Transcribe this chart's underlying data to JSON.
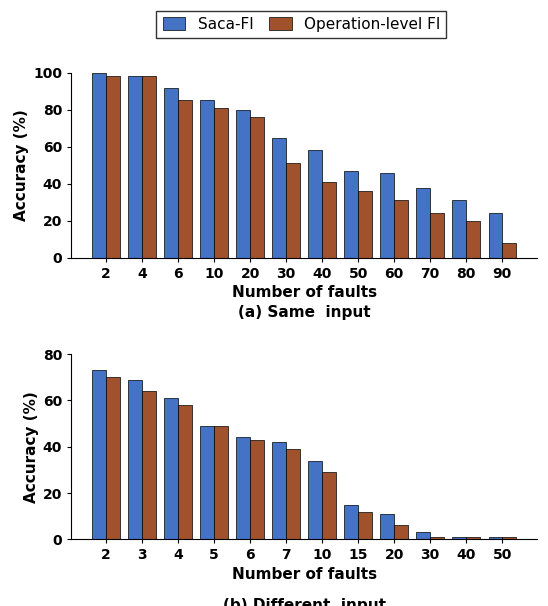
{
  "top_chart": {
    "caption": "(a) Same  input",
    "xlabel": "Number of faults",
    "ylabel": "Accuracy (%)",
    "ylim": [
      0,
      100
    ],
    "yticks": [
      0,
      20,
      40,
      60,
      80,
      100
    ],
    "categories": [
      "2",
      "4",
      "6",
      "10",
      "20",
      "30",
      "40",
      "50",
      "60",
      "70",
      "80",
      "90"
    ],
    "saca_fi": [
      100,
      98,
      92,
      85,
      80,
      65,
      58,
      47,
      46,
      38,
      31,
      24
    ],
    "op_fi": [
      98,
      98,
      85,
      81,
      76,
      51,
      41,
      36,
      31,
      24,
      20,
      8
    ]
  },
  "bottom_chart": {
    "caption": "(b) Different  input",
    "xlabel": "Number of faults",
    "ylabel": "Accuracy (%)",
    "ylim": [
      0,
      80
    ],
    "yticks": [
      0,
      20,
      40,
      60,
      80
    ],
    "categories": [
      "2",
      "3",
      "4",
      "5",
      "6",
      "7",
      "10",
      "15",
      "20",
      "30",
      "40",
      "50"
    ],
    "saca_fi": [
      73,
      69,
      61,
      49,
      44,
      42,
      34,
      15,
      11,
      3,
      1,
      1
    ],
    "op_fi": [
      70,
      64,
      58,
      49,
      43,
      39,
      29,
      12,
      6,
      1,
      1,
      1
    ]
  },
  "legend": {
    "saca_label": "Saca-FI",
    "op_label": "Operation-level FI"
  },
  "colors": {
    "saca_color": "#4472C4",
    "op_color": "#A0522D"
  },
  "bar_width": 0.38,
  "caption_fontsize": 11,
  "label_fontsize": 11,
  "tick_fontsize": 10,
  "legend_fontsize": 11
}
